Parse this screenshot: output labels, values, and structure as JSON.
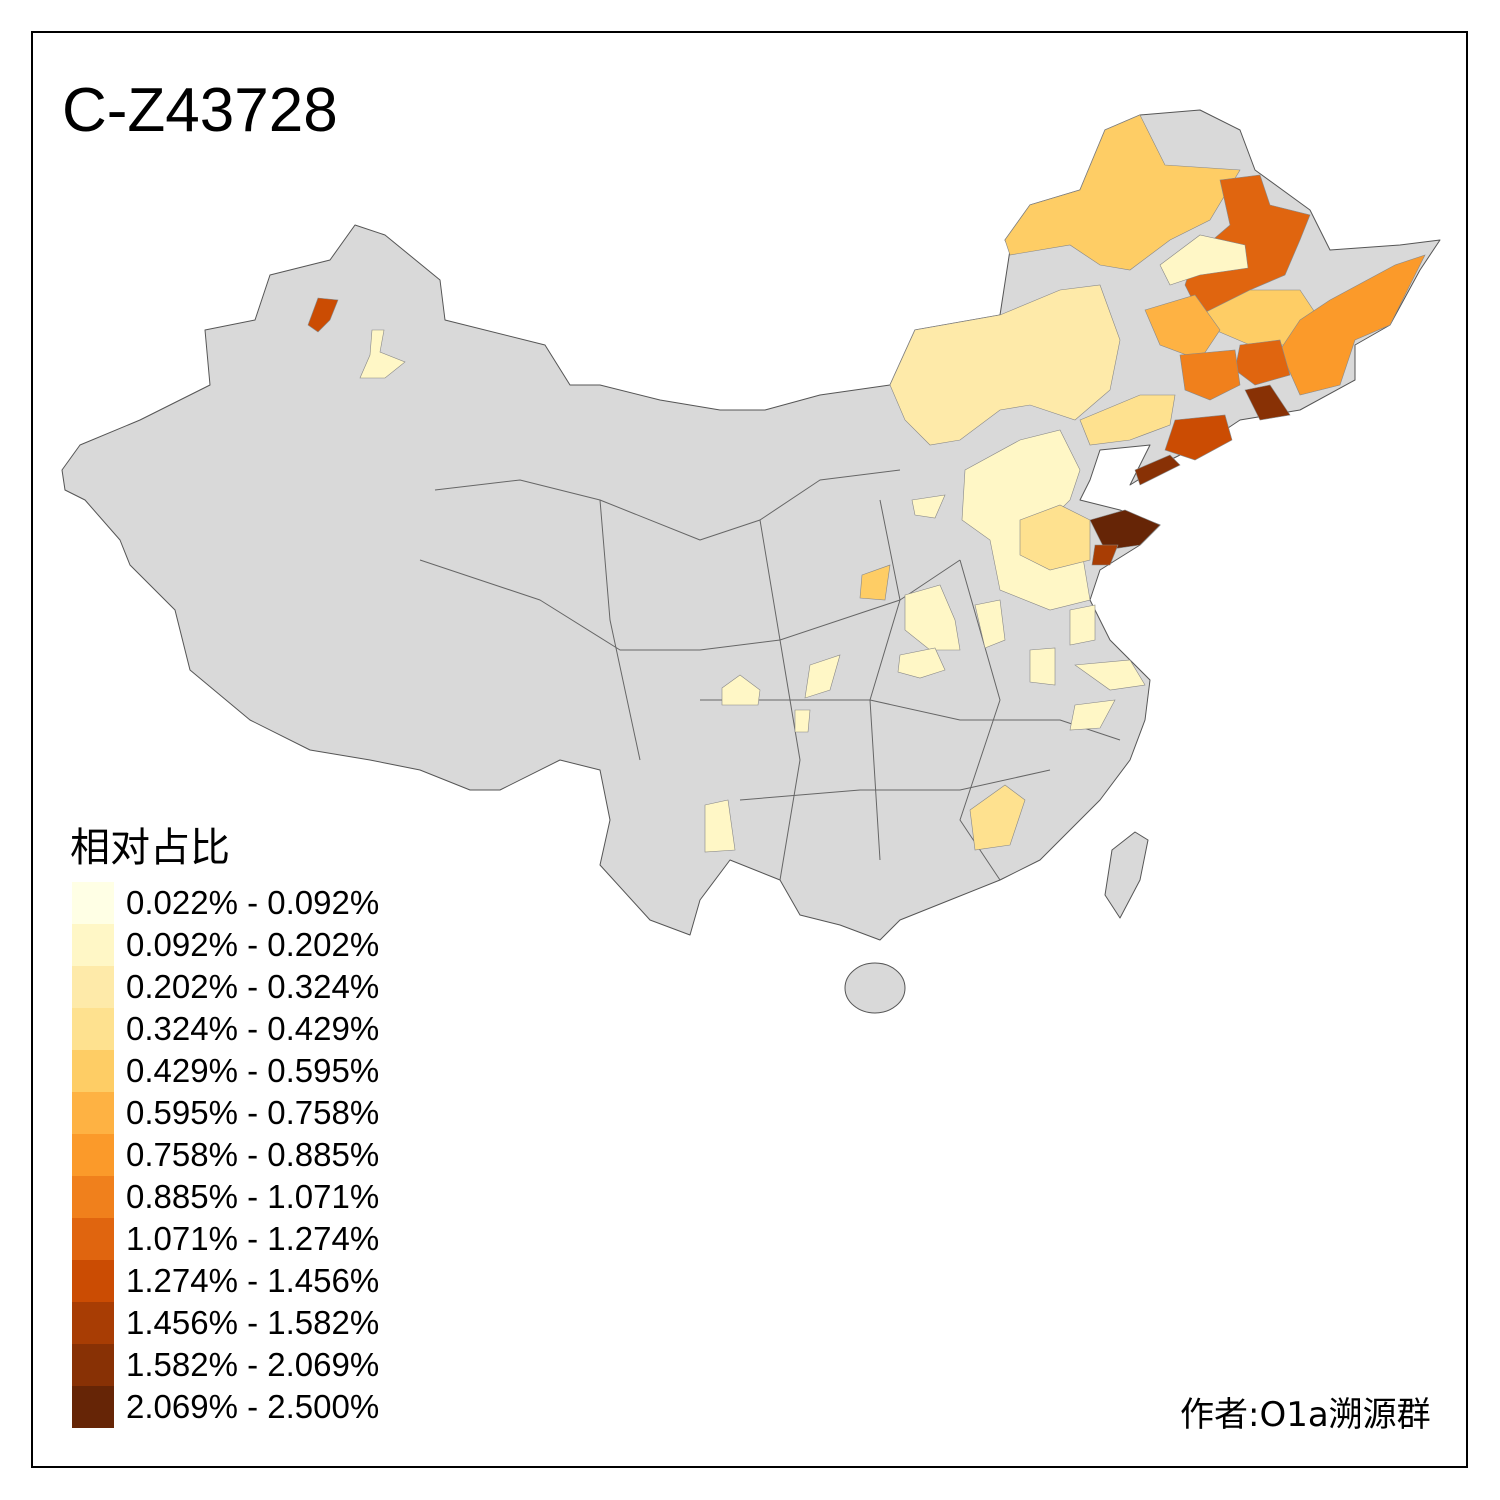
{
  "title": "C-Z43728",
  "legend": {
    "title": "相对占比",
    "items": [
      {
        "label": "0.022% - 0.092%",
        "color": "#ffffe5"
      },
      {
        "label": "0.092% - 0.202%",
        "color": "#fff7c6"
      },
      {
        "label": "0.202% - 0.324%",
        "color": "#feeaa9"
      },
      {
        "label": "0.324% - 0.429%",
        "color": "#fee18f"
      },
      {
        "label": "0.429% - 0.595%",
        "color": "#fecd65"
      },
      {
        "label": "0.595% - 0.758%",
        "color": "#feb243"
      },
      {
        "label": "0.758% - 0.885%",
        "color": "#fb9a2a"
      },
      {
        "label": "0.885% - 1.071%",
        "color": "#f0801c"
      },
      {
        "label": "1.071% - 1.274%",
        "color": "#e0650f"
      },
      {
        "label": "1.274% - 1.456%",
        "color": "#cb4c03"
      },
      {
        "label": "1.456% - 1.582%",
        "color": "#a83d04"
      },
      {
        "label": "1.582% - 2.069%",
        "color": "#883105"
      },
      {
        "label": "2.069% - 2.500%",
        "color": "#662506"
      }
    ]
  },
  "map": {
    "no_data_color": "#d9d9d9",
    "border_color": "#555555"
  },
  "author": "作者:O1a溯源群"
}
